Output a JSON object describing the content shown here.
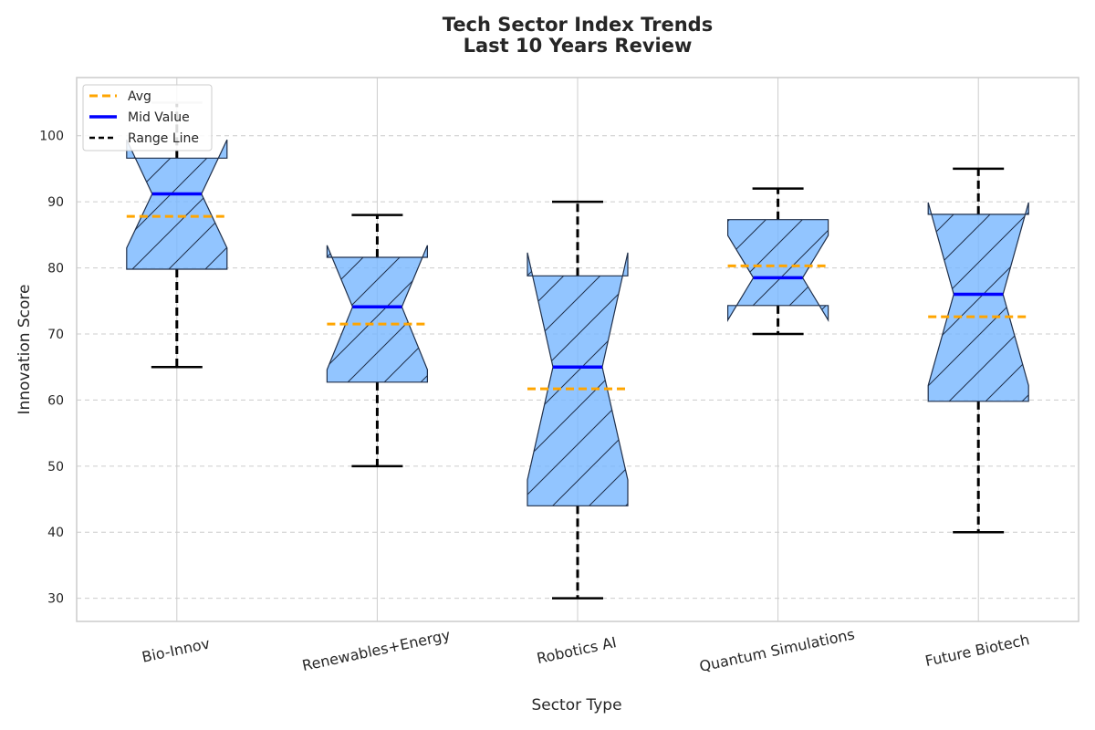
{
  "chart_data": {
    "type": "boxplot",
    "title_line1": "Tech Sector Index Trends",
    "title_line2": "Last 10 Years Review",
    "xlabel": "Sector Type",
    "ylabel": "Innovation Score",
    "ylim": [
      26.5,
      108.8
    ],
    "yticks": [
      "30",
      "40",
      "50",
      "60",
      "70",
      "80",
      "90",
      "100"
    ],
    "grid": true,
    "legend_position": "top-left",
    "legend": [
      "Avg",
      "Mid Value",
      "Range Line"
    ],
    "categories": [
      "Bio-Innov",
      "Renewables+Energy",
      "Robotics AI",
      "Quantum Simulations",
      "Future Biotech"
    ],
    "boxes": [
      {
        "whisker_low": 65,
        "q1": 79.8,
        "median": 91.2,
        "q3": 96.6,
        "whisker_high": 105,
        "mean": 87.8,
        "notch_low": 83,
        "notch_high": 99.4
      },
      {
        "whisker_low": 50,
        "q1": 62.7,
        "median": 74.1,
        "q3": 81.6,
        "whisker_high": 88,
        "mean": 71.5,
        "notch_low": 64.6,
        "notch_high": 83.4
      },
      {
        "whisker_low": 30,
        "q1": 44.0,
        "median": 65.0,
        "q3": 78.8,
        "whisker_high": 90,
        "mean": 61.7,
        "notch_low": 47.9,
        "notch_high": 82.3
      },
      {
        "whisker_low": 70,
        "q1": 74.3,
        "median": 78.5,
        "q3": 87.3,
        "whisker_high": 92,
        "mean": 80.3,
        "notch_low": 72.1,
        "notch_high": 84.9
      },
      {
        "whisker_low": 40,
        "q1": 59.8,
        "median": 76.0,
        "q3": 88.1,
        "whisker_high": 95,
        "mean": 72.6,
        "notch_low": 62.2,
        "notch_high": 89.9
      }
    ],
    "colors": {
      "box_fill": "#77b7ff",
      "box_edge": "#1f2f4a",
      "median": "#0000ff",
      "mean": "#ffa500",
      "whisker": "#000000",
      "grid": "#cccccc",
      "axes_edge": "#cccccc"
    }
  }
}
